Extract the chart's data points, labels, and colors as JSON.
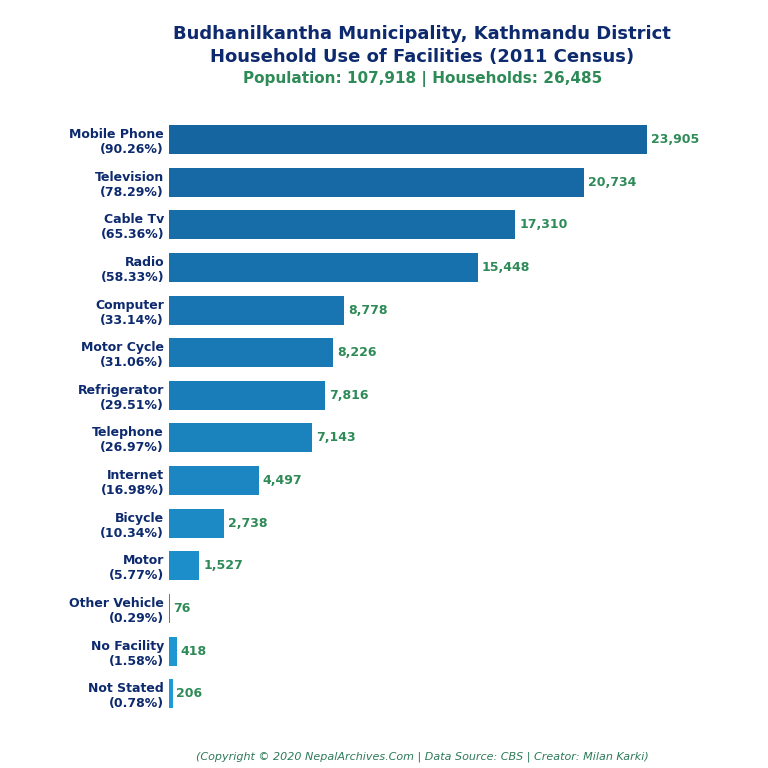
{
  "title_line1": "Budhanilkantha Municipality, Kathmandu District",
  "title_line2": "Household Use of Facilities (2011 Census)",
  "subtitle": "Population: 107,918 | Households: 26,485",
  "copyright": "(Copyright © 2020 NepalArchives.Com | Data Source: CBS | Creator: Milan Karki)",
  "categories": [
    "Mobile Phone\n(90.26%)",
    "Television\n(78.29%)",
    "Cable Tv\n(65.36%)",
    "Radio\n(58.33%)",
    "Computer\n(33.14%)",
    "Motor Cycle\n(31.06%)",
    "Refrigerator\n(29.51%)",
    "Telephone\n(26.97%)",
    "Internet\n(16.98%)",
    "Bicycle\n(10.34%)",
    "Motor\n(5.77%)",
    "Other Vehicle\n(0.29%)",
    "No Facility\n(1.58%)",
    "Not Stated\n(0.78%)"
  ],
  "values": [
    23905,
    20734,
    17310,
    15448,
    8778,
    8226,
    7816,
    7143,
    4497,
    2738,
    1527,
    76,
    418,
    206
  ],
  "value_labels": [
    "23,905",
    "20,734",
    "17,310",
    "15,448",
    "8,778",
    "8,226",
    "7,816",
    "7,143",
    "4,497",
    "2,738",
    "1,527",
    "76",
    "418",
    "206"
  ],
  "bar_color_dark": "#1565a0",
  "bar_color_light": "#1a9fd4",
  "title_color": "#0d2a6e",
  "subtitle_color": "#2e8b57",
  "value_color": "#2e8b57",
  "label_color": "#0d2a6e",
  "copyright_color": "#2e7a5a",
  "background_color": "#ffffff",
  "xlim": [
    0,
    26500
  ],
  "title_fontsize": 13,
  "subtitle_fontsize": 11,
  "label_fontsize": 9,
  "value_fontsize": 9,
  "copyright_fontsize": 8
}
